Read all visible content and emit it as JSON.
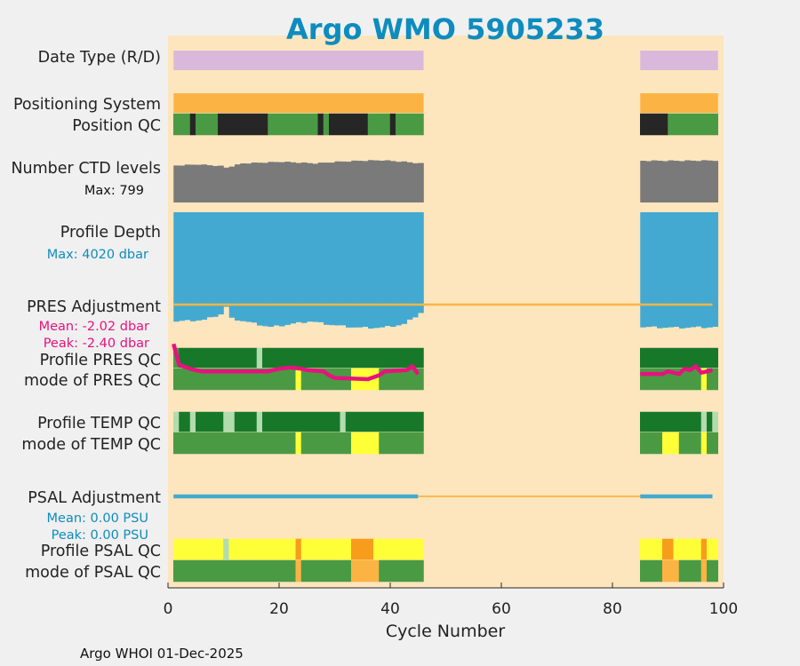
{
  "chart_data": {
    "type": "table",
    "title": "Argo WMO 5905233",
    "xlabel": "Cycle Number",
    "xlim": [
      0,
      100
    ],
    "xticks": [
      "0",
      "20",
      "40",
      "60",
      "80",
      "100"
    ],
    "footer": "Argo WHOI 01-Dec-2025",
    "row_labels": {
      "date_type": "Date Type (R/D)",
      "positioning_system": "Positioning System",
      "position_qc": "Position QC",
      "number_ctd_levels": "Number CTD levels",
      "profile_depth": "Profile Depth",
      "pres_adjustment": "PRES Adjustment",
      "profile_pres_qc": "Profile PRES QC",
      "mode_pres_qc": "mode of PRES QC",
      "profile_temp_qc": "Profile TEMP QC",
      "mode_temp_qc": "mode of TEMP QC",
      "psal_adjustment": "PSAL Adjustment",
      "profile_psal_qc": "Profile PSAL QC",
      "mode_psal_qc": "mode of PSAL QC"
    },
    "annotations": {
      "ctd_max": "Max: 799",
      "depth_max": "Max: 4020 dbar",
      "pres_mean": "Mean: -2.02 dbar",
      "pres_peak": "Peak: -2.40 dbar",
      "psal_mean": "Mean: 0.00 PSU",
      "psal_peak": "Peak: 0.00 PSU"
    },
    "cycle_segments": [
      [
        1,
        45
      ],
      [
        85,
        98
      ]
    ],
    "colors": {
      "background": "#fde5bd",
      "date_type": "#dab8dc",
      "positioning": "#fbb444",
      "qc_good": "#4a9a44",
      "qc_dark_green": "#18782a",
      "qc_light": "#b2dcae",
      "qc_bad": "#262626",
      "qc_yellow": "#ffff38",
      "qc_orange": "#f89c1c",
      "qc_light_orange": "#fbb444",
      "ctd_gray": "#7a7a7a",
      "depth_blue": "#43a9d0",
      "pres_line": "#e6127e",
      "psal_line": "#43a9d0",
      "zero_line": "#fbb444",
      "title": "#0e8cbe",
      "annotation_blue": "#0e8cbe",
      "annotation_pink": "#e6127e"
    },
    "position_qc": [
      {
        "from": 1,
        "to": 4,
        "q": "good"
      },
      {
        "from": 4,
        "to": 5,
        "q": "bad"
      },
      {
        "from": 5,
        "to": 9,
        "q": "good"
      },
      {
        "from": 9,
        "to": 18,
        "q": "bad"
      },
      {
        "from": 18,
        "to": 27,
        "q": "good"
      },
      {
        "from": 27,
        "to": 28,
        "q": "bad"
      },
      {
        "from": 28,
        "to": 29,
        "q": "good"
      },
      {
        "from": 29,
        "to": 36,
        "q": "bad"
      },
      {
        "from": 36,
        "to": 40,
        "q": "good"
      },
      {
        "from": 40,
        "to": 41,
        "q": "bad"
      },
      {
        "from": 41,
        "to": 46,
        "q": "good"
      },
      {
        "from": 85,
        "to": 90,
        "q": "bad"
      },
      {
        "from": 90,
        "to": 99,
        "q": "good"
      }
    ],
    "ctd_levels": [
      {
        "cycle": 1,
        "v": 700
      },
      {
        "cycle": 5,
        "v": 720
      },
      {
        "cycle": 9,
        "v": 690
      },
      {
        "cycle": 10,
        "v": 660
      },
      {
        "cycle": 13,
        "v": 740
      },
      {
        "cycle": 20,
        "v": 770
      },
      {
        "cycle": 26,
        "v": 740
      },
      {
        "cycle": 30,
        "v": 770
      },
      {
        "cycle": 34,
        "v": 790
      },
      {
        "cycle": 38,
        "v": 799
      },
      {
        "cycle": 42,
        "v": 770
      },
      {
        "cycle": 45,
        "v": 740
      },
      {
        "cycle": 85,
        "v": 790
      },
      {
        "cycle": 92,
        "v": 790
      },
      {
        "cycle": 98,
        "v": 795
      }
    ],
    "depth_dbar": [
      {
        "cycle": 1,
        "v": 3800
      },
      {
        "cycle": 6,
        "v": 3750
      },
      {
        "cycle": 9,
        "v": 3550
      },
      {
        "cycle": 10,
        "v": 3300
      },
      {
        "cycle": 11,
        "v": 3700
      },
      {
        "cycle": 18,
        "v": 4000
      },
      {
        "cycle": 25,
        "v": 3800
      },
      {
        "cycle": 30,
        "v": 3950
      },
      {
        "cycle": 34,
        "v": 4020
      },
      {
        "cycle": 38,
        "v": 4020
      },
      {
        "cycle": 42,
        "v": 3900
      },
      {
        "cycle": 45,
        "v": 3500
      },
      {
        "cycle": 85,
        "v": 4000
      },
      {
        "cycle": 91,
        "v": 4020
      },
      {
        "cycle": 98,
        "v": 4000
      }
    ],
    "pres_adjustment_dbar": [
      {
        "cycle": 1,
        "v": -1.05
      },
      {
        "cycle": 2,
        "v": -1.85
      },
      {
        "cycle": 4,
        "v": -2.0
      },
      {
        "cycle": 6,
        "v": -2.1
      },
      {
        "cycle": 18,
        "v": -2.1
      },
      {
        "cycle": 20,
        "v": -2.0
      },
      {
        "cycle": 22,
        "v": -1.95
      },
      {
        "cycle": 24,
        "v": -2.0
      },
      {
        "cycle": 25,
        "v": -2.05
      },
      {
        "cycle": 28,
        "v": -2.1
      },
      {
        "cycle": 29,
        "v": -2.25
      },
      {
        "cycle": 30,
        "v": -2.35
      },
      {
        "cycle": 36,
        "v": -2.4
      },
      {
        "cycle": 38,
        "v": -2.25
      },
      {
        "cycle": 39,
        "v": -2.1
      },
      {
        "cycle": 43,
        "v": -2.05
      },
      {
        "cycle": 44,
        "v": -1.9
      },
      {
        "cycle": 45,
        "v": -2.2
      },
      {
        "cycle": 85,
        "v": -2.2
      },
      {
        "cycle": 89,
        "v": -2.2
      },
      {
        "cycle": 90,
        "v": -2.1
      },
      {
        "cycle": 92,
        "v": -2.2
      },
      {
        "cycle": 93,
        "v": -2.0
      },
      {
        "cycle": 94,
        "v": -2.05
      },
      {
        "cycle": 95,
        "v": -1.9
      },
      {
        "cycle": 96,
        "v": -2.15
      },
      {
        "cycle": 98,
        "v": -2.05
      }
    ],
    "pres_range_dbar": [
      -0.8,
      -2.5
    ],
    "profile_pres_qc": [
      {
        "from": 1,
        "to": 2,
        "q": "good"
      },
      {
        "from": 2,
        "to": 16,
        "q": "dark_green"
      },
      {
        "from": 16,
        "to": 17,
        "q": "light"
      },
      {
        "from": 17,
        "to": 46,
        "q": "dark_green"
      },
      {
        "from": 85,
        "to": 99,
        "q": "dark_green"
      }
    ],
    "mode_pres_qc": [
      {
        "from": 1,
        "to": 23,
        "q": "good"
      },
      {
        "from": 23,
        "to": 24,
        "q": "yellow"
      },
      {
        "from": 24,
        "to": 33,
        "q": "good"
      },
      {
        "from": 33,
        "to": 38,
        "q": "yellow"
      },
      {
        "from": 38,
        "to": 46,
        "q": "good"
      },
      {
        "from": 85,
        "to": 96,
        "q": "good"
      },
      {
        "from": 96,
        "to": 97,
        "q": "yellow"
      },
      {
        "from": 97,
        "to": 99,
        "q": "good"
      }
    ],
    "profile_temp_qc": [
      {
        "from": 1,
        "to": 2,
        "q": "light"
      },
      {
        "from": 2,
        "to": 4,
        "q": "dark_green"
      },
      {
        "from": 4,
        "to": 5,
        "q": "light"
      },
      {
        "from": 5,
        "to": 10,
        "q": "dark_green"
      },
      {
        "from": 10,
        "to": 12,
        "q": "light"
      },
      {
        "from": 12,
        "to": 16,
        "q": "dark_green"
      },
      {
        "from": 16,
        "to": 17,
        "q": "light"
      },
      {
        "from": 17,
        "to": 31,
        "q": "dark_green"
      },
      {
        "from": 31,
        "to": 32,
        "q": "light"
      },
      {
        "from": 32,
        "to": 46,
        "q": "dark_green"
      },
      {
        "from": 85,
        "to": 96,
        "q": "dark_green"
      },
      {
        "from": 96,
        "to": 97,
        "q": "light"
      },
      {
        "from": 97,
        "to": 98,
        "q": "dark_green"
      },
      {
        "from": 98,
        "to": 99,
        "q": "light"
      }
    ],
    "mode_temp_qc": [
      {
        "from": 1,
        "to": 23,
        "q": "good"
      },
      {
        "from": 23,
        "to": 24,
        "q": "yellow"
      },
      {
        "from": 24,
        "to": 33,
        "q": "good"
      },
      {
        "from": 33,
        "to": 38,
        "q": "yellow"
      },
      {
        "from": 38,
        "to": 46,
        "q": "good"
      },
      {
        "from": 85,
        "to": 89,
        "q": "good"
      },
      {
        "from": 89,
        "to": 92,
        "q": "yellow"
      },
      {
        "from": 92,
        "to": 96,
        "q": "good"
      },
      {
        "from": 96,
        "to": 97,
        "q": "yellow"
      },
      {
        "from": 97,
        "to": 99,
        "q": "good"
      }
    ],
    "psal_adjustment_psu": [
      {
        "cycle": 1,
        "v": 0.0
      },
      {
        "cycle": 45,
        "v": 0.0
      },
      {
        "cycle": 85,
        "v": 0.0
      },
      {
        "cycle": 98,
        "v": 0.0
      }
    ],
    "profile_psal_qc": [
      {
        "from": 1,
        "to": 10,
        "q": "yellow"
      },
      {
        "from": 10,
        "to": 11,
        "q": "light"
      },
      {
        "from": 11,
        "to": 23,
        "q": "yellow"
      },
      {
        "from": 23,
        "to": 24,
        "q": "orange"
      },
      {
        "from": 24,
        "to": 33,
        "q": "yellow"
      },
      {
        "from": 33,
        "to": 37,
        "q": "orange"
      },
      {
        "from": 37,
        "to": 46,
        "q": "yellow"
      },
      {
        "from": 85,
        "to": 89,
        "q": "yellow"
      },
      {
        "from": 89,
        "to": 91,
        "q": "orange"
      },
      {
        "from": 91,
        "to": 96,
        "q": "yellow"
      },
      {
        "from": 96,
        "to": 97,
        "q": "orange"
      },
      {
        "from": 97,
        "to": 99,
        "q": "yellow"
      }
    ],
    "mode_psal_qc": [
      {
        "from": 1,
        "to": 23,
        "q": "good"
      },
      {
        "from": 23,
        "to": 24,
        "q": "light_orange"
      },
      {
        "from": 24,
        "to": 33,
        "q": "good"
      },
      {
        "from": 33,
        "to": 38,
        "q": "light_orange"
      },
      {
        "from": 38,
        "to": 46,
        "q": "good"
      },
      {
        "from": 85,
        "to": 89,
        "q": "good"
      },
      {
        "from": 89,
        "to": 92,
        "q": "light_orange"
      },
      {
        "from": 92,
        "to": 96,
        "q": "good"
      },
      {
        "from": 96,
        "to": 97,
        "q": "light_orange"
      },
      {
        "from": 97,
        "to": 99,
        "q": "good"
      }
    ]
  }
}
